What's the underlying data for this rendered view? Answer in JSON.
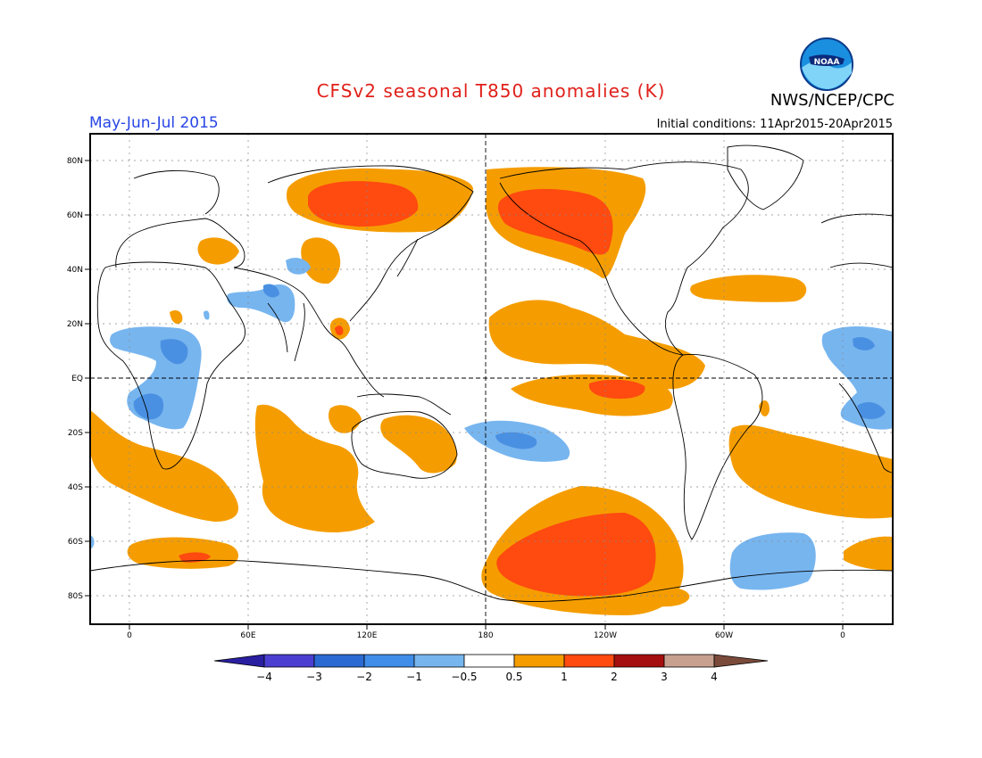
{
  "title": "CFSv2 seasonal T850 anomalies (K)",
  "agency": "NWS/NCEP/CPC",
  "logo_text": "NOAA",
  "period": "May-Jun-Jul 2015",
  "initial_conditions": "Initial conditions: 11Apr2015-20Apr2015",
  "lat_labels": [
    "80N",
    "60N",
    "40N",
    "20N",
    "EQ",
    "20S",
    "40S",
    "60S",
    "80S"
  ],
  "lon_labels": [
    "0",
    "60E",
    "120E",
    "180",
    "120W",
    "60W",
    "0"
  ],
  "colorbar": {
    "labels": [
      "−4",
      "−3",
      "−2",
      "−1",
      "−0.5",
      "0.5",
      "1",
      "2",
      "3",
      "4"
    ],
    "colors": [
      "#2a1fa0",
      "#4a3fd0",
      "#2b6ad2",
      "#3f8de8",
      "#77b5ef",
      "#ffffff",
      "#f59d00",
      "#ff4a10",
      "#a50f0f",
      "#c8a090",
      "#7a4a3a"
    ]
  },
  "colors": {
    "title": "#e0201a",
    "period": "#2846e6",
    "orange": "#f59d00",
    "red": "#ff4a10",
    "blue": "#77b5ef",
    "blue2": "#4a90e2"
  }
}
